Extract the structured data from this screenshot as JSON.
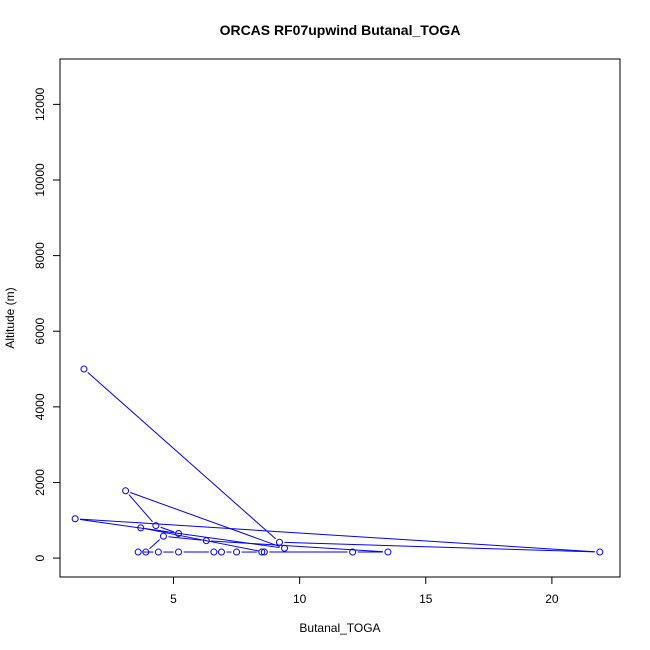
{
  "chart_data": {
    "type": "line",
    "title": "ORCAS RF07upwind Butanal_TOGA",
    "xlabel": "Butanal_TOGA",
    "ylabel": "Altitude (m)",
    "xlim": [
      0.5,
      22.7
    ],
    "ylim": [
      -500,
      13200
    ],
    "x_ticks": [
      5,
      10,
      15,
      20
    ],
    "y_ticks": [
      0,
      2000,
      4000,
      6000,
      8000,
      10000,
      12000
    ],
    "grid": false,
    "legend": "none",
    "series": [
      {
        "color": "#0000ff",
        "points": [
          {
            "x": 1.45,
            "y": 5000
          },
          {
            "x": 9.2,
            "y": 420
          },
          {
            "x": 21.9,
            "y": 160
          },
          {
            "x": 1.1,
            "y": 1040
          },
          {
            "x": 9.4,
            "y": 260
          },
          {
            "x": 3.1,
            "y": 1780
          },
          {
            "x": 4.3,
            "y": 860
          },
          {
            "x": 5.2,
            "y": 650
          },
          {
            "x": 3.7,
            "y": 800
          },
          {
            "x": 8.6,
            "y": 160
          },
          {
            "x": 12.1,
            "y": 160
          },
          {
            "x": 13.5,
            "y": 160
          },
          {
            "x": 6.3,
            "y": 460
          },
          {
            "x": 4.6,
            "y": 580
          },
          {
            "x": 3.9,
            "y": 160
          },
          {
            "x": 3.6,
            "y": 160
          },
          {
            "x": 4.4,
            "y": 160
          },
          {
            "x": 5.2,
            "y": 160
          },
          {
            "x": 6.6,
            "y": 160
          },
          {
            "x": 6.9,
            "y": 160
          },
          {
            "x": 7.5,
            "y": 160
          },
          {
            "x": 8.5,
            "y": 160
          }
        ]
      }
    ]
  }
}
